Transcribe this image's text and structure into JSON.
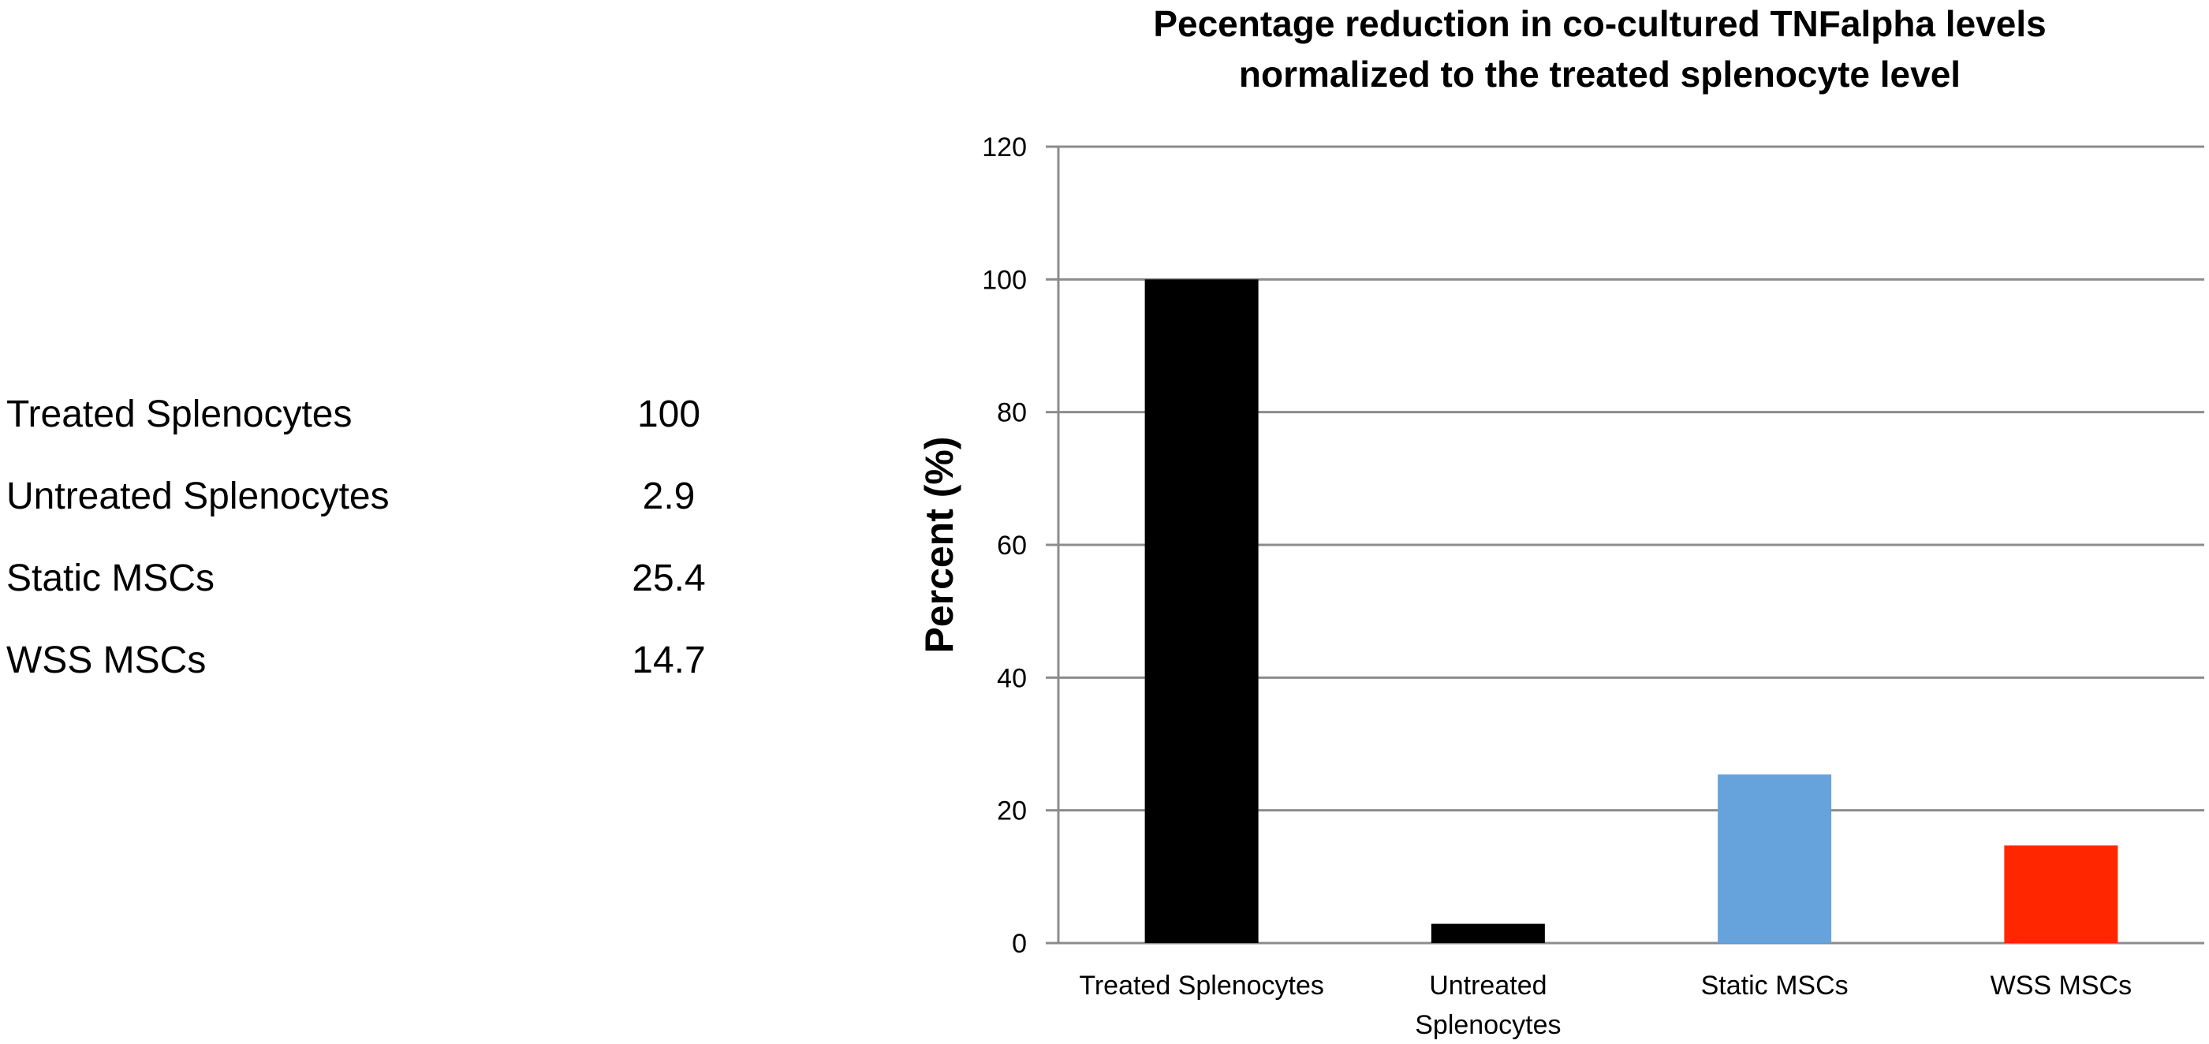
{
  "data_table": {
    "rows": [
      {
        "label": "Treated Splenocytes",
        "value": "100"
      },
      {
        "label": "Untreated Splenocytes",
        "value": "2.9"
      },
      {
        "label": "Static MSCs",
        "value": "25.4"
      },
      {
        "label": "WSS MSCs",
        "value": "14.7"
      }
    ]
  },
  "chart_data": {
    "type": "bar",
    "title": [
      "Pecentage reduction in co-cultured TNFalpha levels",
      "normalized to the treated splenocyte level"
    ],
    "xlabel": "",
    "ylabel": "Percent (%)",
    "ylim": [
      0,
      120
    ],
    "yticks": [
      0,
      20,
      40,
      60,
      80,
      100,
      120
    ],
    "grid": true,
    "legend": "none",
    "categories": [
      [
        "Treated Splenocytes"
      ],
      [
        "Untreated",
        "Splenocytes"
      ],
      [
        "Static MSCs"
      ],
      [
        "WSS MSCs"
      ]
    ],
    "values": [
      100,
      2.9,
      25.4,
      14.7
    ],
    "colors": [
      "#000000",
      "#000000",
      "#66A3DD",
      "#FF2600"
    ],
    "gridline_color": "#8C8C8C",
    "axis_color": "#8C8C8C"
  }
}
